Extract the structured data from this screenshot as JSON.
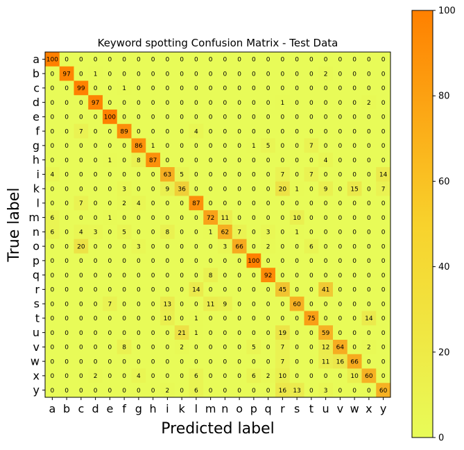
{
  "chart_data": {
    "type": "heatmap",
    "title": "Keyword spotting Confusion Matrix - Test Data",
    "xlabel": "Predicted label",
    "ylabel": "True label",
    "x_categories": [
      "a",
      "b",
      "c",
      "d",
      "e",
      "f",
      "g",
      "h",
      "i",
      "k",
      "l",
      "m",
      "n",
      "o",
      "p",
      "q",
      "r",
      "s",
      "t",
      "u",
      "v",
      "w",
      "x",
      "y"
    ],
    "y_categories": [
      "a",
      "b",
      "c",
      "d",
      "e",
      "f",
      "g",
      "h",
      "i",
      "k",
      "l",
      "m",
      "n",
      "o",
      "p",
      "q",
      "r",
      "s",
      "t",
      "u",
      "v",
      "w",
      "x",
      "y"
    ],
    "values": [
      [
        100,
        0,
        0,
        0,
        0,
        0,
        0,
        0,
        0,
        0,
        0,
        0,
        0,
        0,
        0,
        0,
        0,
        0,
        0,
        0,
        0,
        0,
        0,
        0
      ],
      [
        0,
        97,
        0,
        1,
        0,
        0,
        0,
        0,
        0,
        0,
        0,
        0,
        0,
        0,
        0,
        0,
        0,
        0,
        0,
        2,
        0,
        0,
        0,
        0
      ],
      [
        0,
        0,
        99,
        0,
        0,
        1,
        0,
        0,
        0,
        0,
        0,
        0,
        0,
        0,
        0,
        0,
        0,
        0,
        0,
        0,
        0,
        0,
        0,
        0
      ],
      [
        0,
        0,
        0,
        97,
        0,
        0,
        0,
        0,
        0,
        0,
        0,
        0,
        0,
        0,
        0,
        0,
        1,
        0,
        0,
        0,
        0,
        0,
        2,
        0
      ],
      [
        0,
        0,
        0,
        0,
        100,
        0,
        0,
        0,
        0,
        0,
        0,
        0,
        0,
        0,
        0,
        0,
        0,
        0,
        0,
        0,
        0,
        0,
        0,
        0
      ],
      [
        0,
        0,
        7,
        0,
        0,
        89,
        0,
        0,
        0,
        0,
        4,
        0,
        0,
        0,
        0,
        0,
        0,
        0,
        0,
        0,
        0,
        0,
        0,
        0
      ],
      [
        0,
        0,
        0,
        0,
        0,
        0,
        86,
        1,
        0,
        0,
        0,
        0,
        0,
        0,
        1,
        5,
        0,
        0,
        7,
        0,
        0,
        0,
        0,
        0
      ],
      [
        0,
        0,
        0,
        0,
        1,
        0,
        8,
        87,
        0,
        0,
        0,
        0,
        0,
        0,
        0,
        0,
        0,
        0,
        0,
        4,
        0,
        0,
        0,
        0
      ],
      [
        4,
        0,
        0,
        0,
        0,
        0,
        0,
        0,
        63,
        5,
        0,
        0,
        0,
        0,
        0,
        0,
        7,
        0,
        7,
        0,
        0,
        0,
        0,
        14
      ],
      [
        0,
        0,
        0,
        0,
        0,
        3,
        0,
        0,
        9,
        36,
        0,
        0,
        0,
        0,
        0,
        0,
        20,
        1,
        0,
        9,
        0,
        15,
        0,
        7
      ],
      [
        0,
        0,
        7,
        0,
        0,
        2,
        4,
        0,
        0,
        0,
        87,
        0,
        0,
        0,
        0,
        0,
        0,
        0,
        0,
        0,
        0,
        0,
        0,
        0
      ],
      [
        6,
        0,
        0,
        0,
        1,
        0,
        0,
        0,
        0,
        0,
        0,
        72,
        11,
        0,
        0,
        0,
        0,
        10,
        0,
        0,
        0,
        0,
        0,
        0
      ],
      [
        6,
        0,
        4,
        3,
        0,
        5,
        0,
        0,
        8,
        0,
        0,
        1,
        62,
        7,
        0,
        3,
        0,
        1,
        0,
        0,
        0,
        0,
        0,
        0
      ],
      [
        0,
        0,
        20,
        0,
        0,
        0,
        3,
        0,
        0,
        0,
        0,
        0,
        3,
        66,
        0,
        2,
        0,
        0,
        6,
        0,
        0,
        0,
        0,
        0
      ],
      [
        0,
        0,
        0,
        0,
        0,
        0,
        0,
        0,
        0,
        0,
        0,
        0,
        0,
        0,
        100,
        0,
        0,
        0,
        0,
        0,
        0,
        0,
        0,
        0
      ],
      [
        0,
        0,
        0,
        0,
        0,
        0,
        0,
        0,
        0,
        0,
        0,
        8,
        0,
        0,
        0,
        92,
        0,
        0,
        0,
        0,
        0,
        0,
        0,
        0
      ],
      [
        0,
        0,
        0,
        0,
        0,
        0,
        0,
        0,
        0,
        0,
        14,
        0,
        0,
        0,
        0,
        0,
        45,
        0,
        0,
        41,
        0,
        0,
        0,
        0
      ],
      [
        0,
        0,
        0,
        0,
        7,
        0,
        0,
        0,
        13,
        0,
        0,
        11,
        9,
        0,
        0,
        0,
        0,
        60,
        0,
        0,
        0,
        0,
        0,
        0
      ],
      [
        0,
        0,
        0,
        0,
        0,
        0,
        0,
        0,
        10,
        0,
        1,
        0,
        0,
        0,
        0,
        0,
        0,
        0,
        75,
        0,
        0,
        0,
        14,
        0
      ],
      [
        0,
        0,
        0,
        0,
        0,
        0,
        0,
        0,
        0,
        21,
        1,
        0,
        0,
        0,
        0,
        0,
        19,
        0,
        0,
        59,
        0,
        0,
        0,
        0
      ],
      [
        0,
        0,
        0,
        0,
        0,
        8,
        0,
        0,
        0,
        2,
        0,
        0,
        0,
        0,
        5,
        0,
        7,
        0,
        0,
        12,
        64,
        0,
        2,
        0
      ],
      [
        0,
        0,
        0,
        0,
        0,
        0,
        0,
        0,
        0,
        0,
        0,
        0,
        0,
        0,
        0,
        0,
        7,
        0,
        0,
        11,
        16,
        66,
        0,
        0
      ],
      [
        0,
        0,
        0,
        2,
        0,
        0,
        4,
        0,
        0,
        0,
        6,
        0,
        0,
        0,
        6,
        2,
        10,
        0,
        0,
        0,
        0,
        10,
        60,
        0
      ],
      [
        0,
        0,
        0,
        0,
        0,
        0,
        0,
        0,
        2,
        0,
        6,
        0,
        0,
        0,
        0,
        0,
        16,
        13,
        0,
        3,
        0,
        0,
        0,
        60
      ]
    ],
    "colorbar": {
      "min": 0,
      "max": 100,
      "ticks": [
        0,
        20,
        40,
        60,
        80,
        100
      ],
      "colors": [
        "#e8fb58",
        "#ff8000"
      ]
    }
  }
}
